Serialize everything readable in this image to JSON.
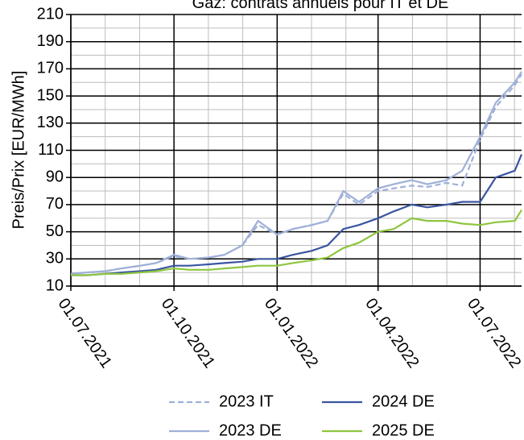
{
  "chart_data": {
    "type": "line",
    "title": "Gaz: contrats annuels pour IT et DE",
    "y_label": "Preis/Prix [EUR/MWh]",
    "x": [
      "01.07.2021",
      "15.07.2021",
      "01.08.2021",
      "15.08.2021",
      "01.09.2021",
      "15.09.2021",
      "01.10.2021",
      "15.10.2021",
      "01.11.2021",
      "15.11.2021",
      "01.12.2021",
      "15.12.2021",
      "01.01.2022",
      "15.01.2022",
      "01.02.2022",
      "15.02.2022",
      "01.03.2022",
      "15.03.2022",
      "01.04.2022",
      "15.04.2022",
      "01.05.2022",
      "15.05.2022",
      "01.06.2022",
      "15.06.2022",
      "01.07.2022",
      "15.07.2022",
      "01.08.2022",
      "07.08.2022"
    ],
    "series": [
      {
        "name": "2023 IT",
        "color": "#9fb0d8",
        "dashed": true,
        "values": [
          19,
          20,
          21,
          23,
          25,
          27,
          32,
          30,
          31,
          33,
          40,
          55,
          48,
          52,
          55,
          58,
          78,
          70,
          80,
          82,
          84,
          83,
          86,
          84,
          118,
          142,
          158,
          166
        ]
      },
      {
        "name": "2024 DE",
        "color": "#3a55a0",
        "dashed": false,
        "values": [
          18,
          18,
          19,
          20,
          21,
          22,
          25,
          25,
          26,
          27,
          28,
          30,
          30,
          33,
          36,
          40,
          52,
          55,
          60,
          65,
          70,
          68,
          70,
          72,
          72,
          90,
          95,
          107
        ]
      },
      {
        "name": "2023 DE",
        "color": "#9fb0d8",
        "dashed": false,
        "values": [
          19,
          20,
          21,
          23,
          25,
          27,
          33,
          30,
          31,
          33,
          40,
          58,
          48,
          52,
          55,
          58,
          80,
          72,
          82,
          85,
          88,
          85,
          88,
          95,
          120,
          145,
          160,
          168
        ]
      },
      {
        "name": "2025 DE",
        "color": "#8dc63f",
        "dashed": false,
        "values": [
          18,
          18,
          19,
          19,
          20,
          21,
          23,
          22,
          22,
          23,
          24,
          25,
          25,
          27,
          29,
          31,
          38,
          42,
          50,
          52,
          60,
          58,
          58,
          56,
          55,
          57,
          58,
          66
        ]
      }
    ],
    "xlim": [
      "01.07.2021",
      "07.08.2022"
    ],
    "xticks": [
      "01.07.2021",
      "01.10.2021",
      "01.01.2022",
      "01.04.2022",
      "01.07.2022"
    ],
    "ylim": [
      10,
      210
    ],
    "yticks": [
      10,
      30,
      50,
      70,
      90,
      110,
      130,
      150,
      170,
      190,
      210
    ],
    "grid": true,
    "legend": "bottom"
  }
}
